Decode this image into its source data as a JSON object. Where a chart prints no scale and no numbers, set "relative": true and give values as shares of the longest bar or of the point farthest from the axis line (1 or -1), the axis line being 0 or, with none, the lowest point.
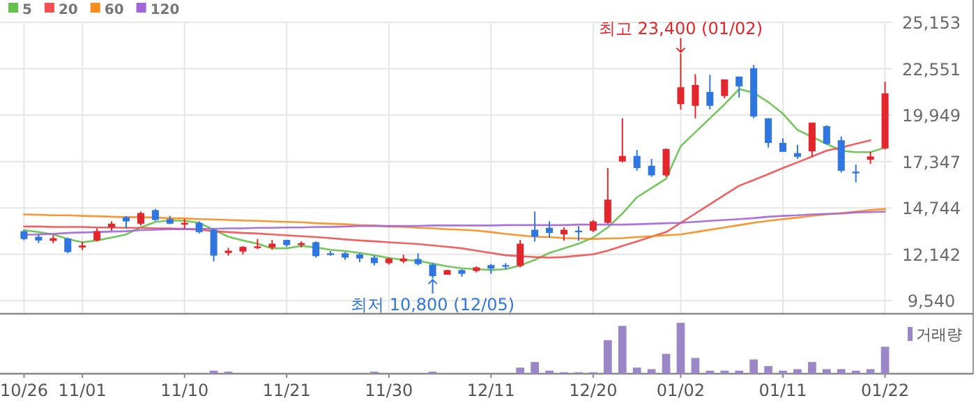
{
  "chart_data": [
    {
      "type": "candlestick",
      "categories": [
        "10/26",
        null,
        null,
        null,
        "11/01",
        null,
        null,
        null,
        null,
        null,
        null,
        "11/10",
        null,
        null,
        null,
        null,
        null,
        null,
        "11/21",
        null,
        null,
        null,
        null,
        null,
        null,
        "11/30",
        null,
        null,
        null,
        null,
        null,
        null,
        "12/11",
        null,
        null,
        null,
        null,
        null,
        null,
        "12/20",
        null,
        null,
        null,
        null,
        null,
        "01/02",
        null,
        null,
        null,
        null,
        null,
        null,
        "01/11",
        null,
        null,
        null,
        null,
        null,
        null,
        "01/22"
      ],
      "ohlc": [
        [
          13440,
          13500,
          12920,
          13000
        ],
        [
          13130,
          13260,
          12770,
          12920
        ],
        [
          12900,
          13210,
          12770,
          13050
        ],
        [
          13030,
          13080,
          12200,
          12270
        ],
        [
          12530,
          12850,
          12380,
          12640
        ],
        [
          12920,
          13600,
          12870,
          13440
        ],
        [
          13650,
          13990,
          13470,
          13860
        ],
        [
          14220,
          14280,
          13600,
          13990
        ],
        [
          13860,
          14540,
          13760,
          14460
        ],
        [
          14620,
          14690,
          14020,
          14070
        ],
        [
          14120,
          14300,
          13830,
          13860
        ],
        [
          13810,
          14120,
          13570,
          13910
        ],
        [
          13910,
          13990,
          13310,
          13390
        ],
        [
          13520,
          13600,
          11750,
          12070
        ],
        [
          12220,
          12510,
          12070,
          12350
        ],
        [
          12300,
          12610,
          12140,
          12560
        ],
        [
          12530,
          13000,
          12430,
          12590
        ],
        [
          12530,
          12950,
          12400,
          12740
        ],
        [
          12950,
          12950,
          12560,
          12660
        ],
        [
          12660,
          12870,
          12530,
          12770
        ],
        [
          12820,
          12870,
          11960,
          12040
        ],
        [
          12200,
          12330,
          12070,
          12140
        ],
        [
          12200,
          12270,
          11830,
          11960
        ],
        [
          12140,
          12200,
          11700,
          11910
        ],
        [
          11960,
          12070,
          11520,
          11650
        ],
        [
          11650,
          11960,
          11570,
          11910
        ],
        [
          11750,
          12120,
          11650,
          11910
        ],
        [
          11880,
          12200,
          11520,
          11600
        ],
        [
          11570,
          11650,
          10800,
          10920
        ],
        [
          11000,
          11260,
          11000,
          11260
        ],
        [
          11260,
          11310,
          10890,
          11050
        ],
        [
          11210,
          11470,
          11130,
          11410
        ],
        [
          11540,
          11600,
          11050,
          11340
        ],
        [
          11540,
          11650,
          11310,
          11470
        ],
        [
          11490,
          12950,
          11410,
          12740
        ],
        [
          13520,
          14540,
          12850,
          13130
        ],
        [
          13630,
          13990,
          13080,
          13340
        ],
        [
          13260,
          13650,
          12920,
          13520
        ],
        [
          13470,
          13730,
          12900,
          13420
        ],
        [
          13470,
          14070,
          13390,
          13990
        ],
        [
          13910,
          16980,
          13860,
          15210
        ],
        [
          17350,
          19770,
          17300,
          17660
        ],
        [
          17660,
          18000,
          16830,
          16980
        ],
        [
          17110,
          17500,
          16490,
          16570
        ],
        [
          16570,
          18080,
          16490,
          18050
        ],
        [
          20570,
          23400,
          20260,
          21510
        ],
        [
          20470,
          22240,
          19770,
          21640
        ],
        [
          21250,
          22210,
          20260,
          20470
        ],
        [
          21020,
          21950,
          20890,
          21950
        ],
        [
          22110,
          22110,
          20940,
          21560
        ],
        [
          22580,
          22760,
          19770,
          19870
        ],
        [
          19770,
          19770,
          18130,
          18390
        ],
        [
          18390,
          18650,
          17890,
          17890
        ],
        [
          17820,
          18280,
          17500,
          17610
        ],
        [
          17920,
          19530,
          17610,
          19530
        ],
        [
          19330,
          19380,
          18280,
          18340
        ],
        [
          18540,
          18750,
          16720,
          16830
        ],
        [
          16780,
          17170,
          16180,
          16700
        ],
        [
          17450,
          17890,
          17220,
          17630
        ],
        [
          18080,
          21820,
          18020,
          21170
        ]
      ],
      "colors": [
        "#2f76e0",
        "#2f76e0",
        "#e3262b",
        "#2f76e0",
        "#e3262b",
        "#e3262b",
        "#e3262b",
        "#2f76e0",
        "#e3262b",
        "#2f76e0",
        "#2f76e0",
        "#e3262b",
        "#2f76e0",
        "#2f76e0",
        "#e3262b",
        "#e3262b",
        "#e3262b",
        "#e3262b",
        "#2f76e0",
        "#e3262b",
        "#2f76e0",
        "#2f76e0",
        "#2f76e0",
        "#2f76e0",
        "#2f76e0",
        "#e3262b",
        "#e3262b",
        "#2f76e0",
        "#2f76e0",
        "#e3262b",
        "#2f76e0",
        "#e3262b",
        "#2f76e0",
        "#2f76e0",
        "#e3262b",
        "#2f76e0",
        "#2f76e0",
        "#e3262b",
        "#2f76e0",
        "#e3262b",
        "#e3262b",
        "#e3262b",
        "#2f76e0",
        "#2f76e0",
        "#e3262b",
        "#e3262b",
        "#e3262b",
        "#2f76e0",
        "#e3262b",
        "#2f76e0",
        "#2f76e0",
        "#2f76e0",
        "#2f76e0",
        "#2f76e0",
        "#e3262b",
        "#2f76e0",
        "#2f76e0",
        "#2f76e0",
        "#e3262b",
        "#e3262b"
      ],
      "series": [
        {
          "type": "line",
          "name": "5",
          "color": "#66c04c",
          "values": [
            13500,
            13390,
            13260,
            13000,
            12820,
            12920,
            13080,
            13260,
            13650,
            13960,
            14040,
            14020,
            13910,
            13520,
            13130,
            12920,
            12740,
            12480,
            12480,
            12610,
            12530,
            12400,
            12330,
            12220,
            12090,
            11940,
            11830,
            11780,
            11620,
            11470,
            11360,
            11310,
            11260,
            11310,
            11520,
            11830,
            12220,
            12480,
            12740,
            13080,
            13650,
            14430,
            15340,
            15860,
            16380,
            18210,
            18990,
            19770,
            20550,
            21410,
            21200,
            20680,
            20030,
            19120,
            18730,
            18340,
            17950,
            17870,
            17870,
            18130
          ]
        },
        {
          "type": "line",
          "name": "20",
          "color": "#f05050",
          "values": [
            13700,
            13700,
            13680,
            13680,
            13680,
            13650,
            13650,
            13630,
            13630,
            13600,
            13600,
            13570,
            13520,
            13440,
            13390,
            13340,
            13310,
            13260,
            13210,
            13160,
            13110,
            13050,
            12980,
            12920,
            12870,
            12820,
            12770,
            12720,
            12640,
            12560,
            12480,
            12350,
            12220,
            12090,
            12040,
            11990,
            11960,
            11990,
            12070,
            12140,
            12350,
            12610,
            12870,
            13130,
            13390,
            13910,
            14430,
            14950,
            15470,
            15990,
            16310,
            16640,
            16980,
            17300,
            17630,
            17960,
            18130,
            18340,
            18540,
            null
          ]
        },
        {
          "type": "line",
          "name": "60",
          "color": "#f78d1e",
          "values": [
            14380,
            14360,
            14330,
            14330,
            14300,
            14280,
            14250,
            14230,
            14230,
            14200,
            14170,
            14150,
            14120,
            14100,
            14070,
            14040,
            14020,
            13990,
            13960,
            13940,
            13890,
            13860,
            13830,
            13780,
            13760,
            13700,
            13680,
            13630,
            13600,
            13550,
            13520,
            13470,
            13390,
            13290,
            13210,
            13130,
            13110,
            13050,
            13030,
            13000,
            13030,
            13050,
            13110,
            13160,
            13210,
            13260,
            13390,
            13520,
            13650,
            13780,
            13910,
            14020,
            14120,
            14200,
            14300,
            14380,
            14460,
            14540,
            14620,
            14690
          ]
        },
        {
          "type": "line",
          "name": "120",
          "color": "#a264d8",
          "values": [
            13240,
            13260,
            13290,
            13340,
            13370,
            13390,
            13420,
            13440,
            13500,
            13520,
            13550,
            13550,
            13570,
            13570,
            13600,
            13600,
            13630,
            13630,
            13650,
            13650,
            13680,
            13680,
            13700,
            13730,
            13730,
            13730,
            13730,
            13730,
            13760,
            13760,
            13760,
            13760,
            13760,
            13780,
            13780,
            13780,
            13780,
            13780,
            13810,
            13810,
            13810,
            13810,
            13830,
            13860,
            13890,
            13910,
            13960,
            14020,
            14070,
            14120,
            14170,
            14250,
            14300,
            14330,
            14380,
            14410,
            14430,
            14490,
            14510,
            14540
          ]
        }
      ],
      "ylim": [
        8810,
        25153
      ],
      "yticks": [
        {
          "value": 9540,
          "label": "9,540"
        },
        {
          "value": 12142,
          "label": "12,142"
        },
        {
          "value": 14744,
          "label": "14,744"
        },
        {
          "value": 17347,
          "label": "17,347"
        },
        {
          "value": 19949,
          "label": "19,949"
        },
        {
          "value": 22551,
          "label": "22,551"
        },
        {
          "value": 25153,
          "label": "25,153"
        }
      ],
      "grid": true,
      "legend": "top left",
      "annotations": [
        {
          "text": "최고 23,400 (01/02)",
          "y": 23400
        },
        {
          "text": "최저 10,800 (12/05)",
          "y": 10800
        }
      ]
    },
    {
      "type": "bar",
      "relative": true,
      "legend": "top right",
      "categories": [
        null,
        null,
        null,
        null,
        null,
        null,
        null,
        null,
        null,
        null,
        null,
        null,
        null,
        null,
        null,
        null,
        null,
        null,
        null,
        null,
        null,
        null,
        null,
        null,
        null,
        null,
        null,
        null,
        null,
        null,
        null,
        null,
        null,
        null,
        null,
        null,
        null,
        null,
        null,
        null,
        null,
        null,
        null,
        null,
        null,
        null,
        null,
        null,
        null,
        null,
        null,
        null,
        null,
        null,
        null,
        null,
        null,
        null,
        null,
        null
      ],
      "series": [
        {
          "name": "거래량",
          "color": "#9b87c8",
          "values": [
            null,
            null,
            null,
            null,
            null,
            null,
            null,
            null,
            null,
            null,
            null,
            null,
            null,
            0.06,
            0.04,
            null,
            null,
            null,
            null,
            null,
            null,
            null,
            null,
            null,
            0.04,
            null,
            null,
            null,
            0.04,
            null,
            null,
            null,
            null,
            null,
            0.12,
            0.23,
            0.06,
            0.03,
            0.03,
            0.03,
            0.66,
            0.94,
            0.12,
            0.09,
            0.39,
            1,
            0.31,
            0.06,
            0.06,
            0.06,
            0.28,
            0.15,
            0.06,
            0.09,
            0.23,
            0.09,
            0.09,
            0.06,
            0.09,
            0.53
          ]
        }
      ]
    }
  ]
}
